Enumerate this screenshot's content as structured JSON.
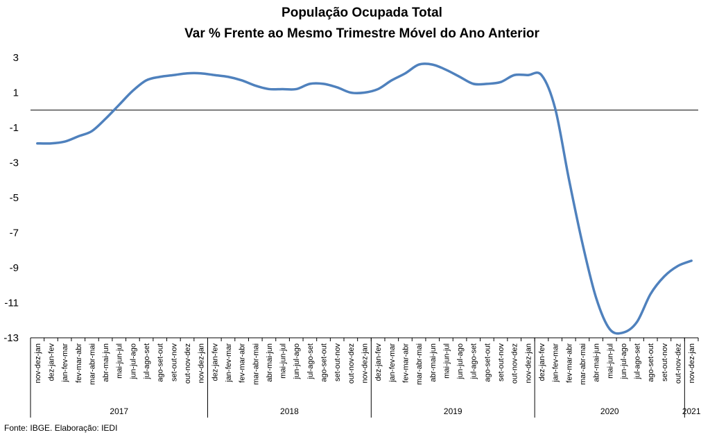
{
  "chart_data": {
    "type": "line",
    "title": "População Ocupada Total",
    "subtitle": "Var % Frente ao Mesmo Trimestre Móvel do Ano Anterior",
    "xlabel": "",
    "ylabel": "",
    "ylim": [
      -13,
      3
    ],
    "yticks": [
      "3",
      "1",
      "-1",
      "-3",
      "-5",
      "-7",
      "-9",
      "-11",
      "-13"
    ],
    "yticks_values": [
      3,
      1,
      -1,
      -3,
      -5,
      -7,
      -9,
      -11,
      -13
    ],
    "grid": false,
    "reference_line": 0,
    "line_color": "#4f81bd",
    "categories": [
      "nov-dez-jan",
      "dez-jan-fev",
      "jan-fev-mar",
      "fev-mar-abr",
      "mar-abr-mai",
      "abr-mai-jun",
      "mai-jun-jul",
      "jun-jul-ago",
      "jul-ago-set",
      "ago-set-out",
      "set-out-nov",
      "out-nov-dez",
      "nov-dez-jan",
      "dez-jan-fev",
      "jan-fev-mar",
      "fev-mar-abr",
      "mar-abr-mai",
      "abr-mai-jun",
      "mai-jun-jul",
      "jun-jul-ago",
      "jul-ago-set",
      "ago-set-out",
      "set-out-nov",
      "out-nov-dez",
      "nov-dez-jan",
      "dez-jan-fev",
      "jan-fev-mar",
      "fev-mar-abr",
      "mar-abr-mai",
      "abr-mai-jun",
      "mai-jun-jul",
      "jun-jul-ago",
      "jul-ago-set",
      "ago-set-out",
      "set-out-nov",
      "out-nov-dez",
      "nov-dez-jan",
      "dez-jan-fev",
      "jan-fev-mar",
      "fev-mar-abr",
      "mar-abr-mai",
      "abr-mai-jun",
      "mai-jun-jul",
      "jun-jul-ago",
      "jul-ago-set",
      "ago-set-out",
      "set-out-nov",
      "out-nov-dez",
      "nov-dez-jan"
    ],
    "year_groups": [
      {
        "label": "2017",
        "start": 0,
        "end": 12
      },
      {
        "label": "2018",
        "start": 13,
        "end": 24
      },
      {
        "label": "2019",
        "start": 25,
        "end": 36
      },
      {
        "label": "2020",
        "start": 37,
        "end": 47
      },
      {
        "label": "2021",
        "start": 48,
        "end": 48
      }
    ],
    "series": [
      {
        "values": [
          -1.9,
          -1.9,
          -1.8,
          -1.5,
          -1.2,
          -0.5,
          0.3,
          1.1,
          1.7,
          1.9,
          2.0,
          2.1,
          2.1,
          2.0,
          1.9,
          1.7,
          1.4,
          1.2,
          1.2,
          1.2,
          1.5,
          1.5,
          1.3,
          1.0,
          1.0,
          1.2,
          1.7,
          2.1,
          2.6,
          2.6,
          2.3,
          1.9,
          1.5,
          1.5,
          1.6,
          2.0,
          2.0,
          2.0,
          0.1,
          -3.9,
          -7.6,
          -10.7,
          -12.5,
          -12.7,
          -12.1,
          -10.5,
          -9.5,
          -8.9,
          -8.6
        ]
      }
    ]
  },
  "footer": {
    "source": "Fonte: IBGE. Elaboração: IEDI"
  }
}
